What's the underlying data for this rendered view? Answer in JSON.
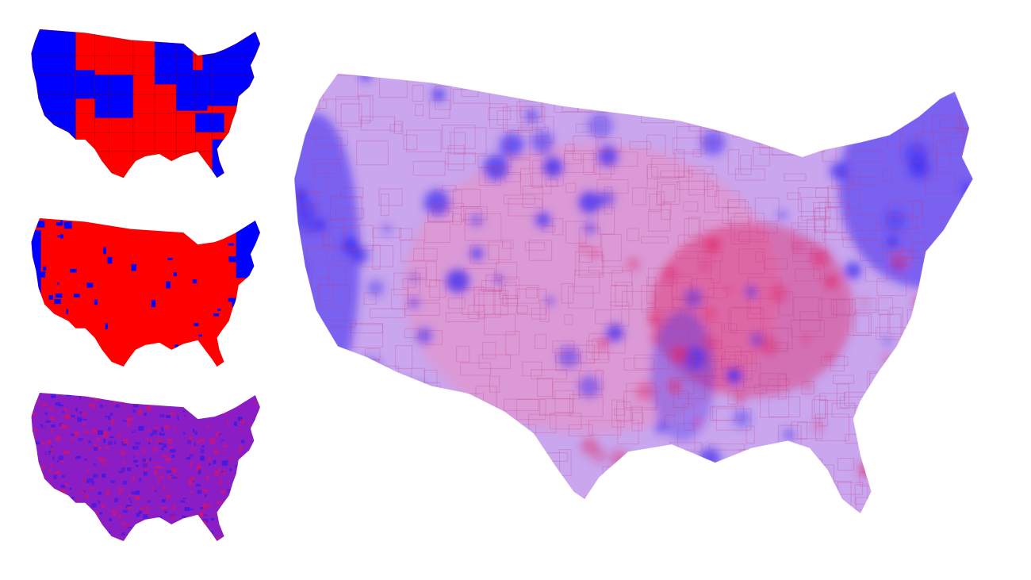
{
  "maps": [
    {
      "id": "state-winner",
      "style": "solid",
      "colors": {
        "dem": "#0000ff",
        "rep": "#ff0000",
        "border": "#7a0000"
      }
    },
    {
      "id": "county-winner",
      "style": "solid",
      "colors": {
        "dem": "#0000ff",
        "rep": "#ff0000",
        "border": "#7a0000"
      }
    },
    {
      "id": "county-blend",
      "style": "purple",
      "colors": {
        "base": "#8a1ec4",
        "dem": "#3a1ae6",
        "rep": "#d4146a",
        "border": "#5a0f6a"
      }
    },
    {
      "id": "county-blend-population",
      "style": "purple-light",
      "colors": {
        "base": "#c9a6ee",
        "dem": "#3b2cf2",
        "rep": "#e02a6a",
        "border": "#c73a7e"
      }
    }
  ]
}
